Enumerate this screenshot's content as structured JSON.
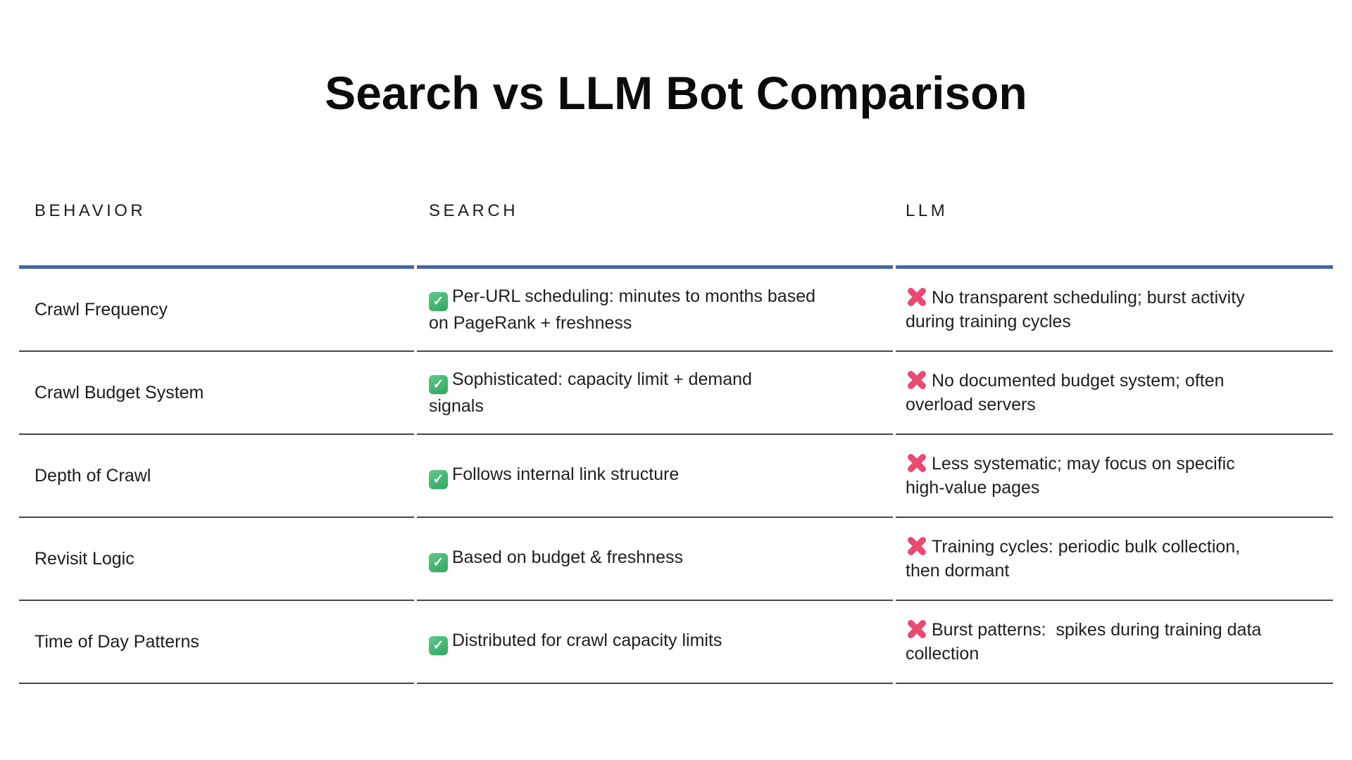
{
  "title": "Search vs LLM Bot Comparison",
  "colors": {
    "background": "#ffffff",
    "header_rule_blue": "#4766a4",
    "row_divider_gray": "#474747",
    "check_green": "#45b673",
    "cross_pink": "#ea4a70",
    "text": "#1f1f1f"
  },
  "table": {
    "headers": [
      {
        "label": "BEHAVIOR"
      },
      {
        "label": "SEARCH"
      },
      {
        "label": "LLM"
      }
    ],
    "icons": {
      "pass": "check-emoji",
      "fail": "cross-emoji"
    },
    "rows": [
      {
        "behavior": "Crawl Frequency",
        "search": {
          "status": "pass",
          "text": "Per-URL scheduling: minutes to months based\non PageRank + freshness"
        },
        "llm": {
          "status": "fail",
          "text": "No transparent scheduling; burst activity\nduring training cycles"
        }
      },
      {
        "behavior": "Crawl Budget System",
        "search": {
          "status": "pass",
          "text": "Sophisticated: capacity limit + demand\nsignals"
        },
        "llm": {
          "status": "fail",
          "text": "No documented budget system; often\noverload servers"
        }
      },
      {
        "behavior": "Depth of Crawl",
        "search": {
          "status": "pass",
          "text": "Follows internal link structure"
        },
        "llm": {
          "status": "fail",
          "text": "Less systematic; may focus on specific\nhigh-value pages"
        }
      },
      {
        "behavior": "Revisit Logic",
        "search": {
          "status": "pass",
          "text": "Based on budget & freshness"
        },
        "llm": {
          "status": "fail",
          "text": "Training cycles: periodic bulk collection,\nthen dormant"
        }
      },
      {
        "behavior": "Time of Day Patterns",
        "search": {
          "status": "pass",
          "text": "Distributed for crawl capacity limits"
        },
        "llm": {
          "status": "fail",
          "text": "Burst patterns:  spikes during training data\ncollection"
        }
      }
    ]
  }
}
